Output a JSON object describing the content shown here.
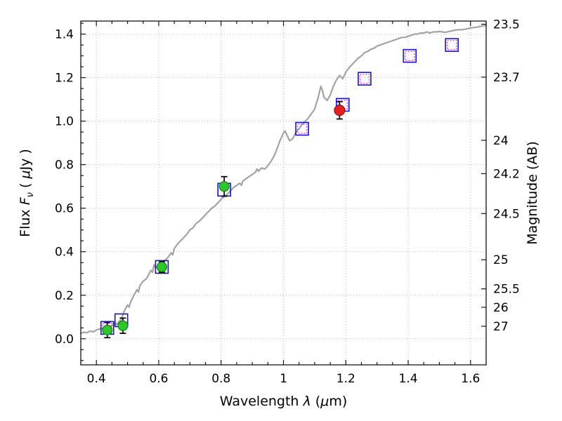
{
  "chart_data": {
    "type": "line+scatter",
    "title": "",
    "xlabel_parts": [
      {
        "t": "Wavelength  "
      },
      {
        "t": "λ",
        "i": true
      },
      {
        "t": " ("
      },
      {
        "t": "μ",
        "i": true
      },
      {
        "t": "m)"
      }
    ],
    "ylabel_left_parts": [
      {
        "t": "Flux  "
      },
      {
        "t": "F",
        "i": true
      },
      {
        "t": "ν",
        "i": true,
        "sub": true
      },
      {
        "t": "  ( "
      },
      {
        "t": "μ",
        "i": true
      },
      {
        "t": "Jy )"
      }
    ],
    "ylabel_right": "Magnitude (AB)",
    "xlim": [
      0.35,
      1.65
    ],
    "ylim": [
      -0.12,
      1.46
    ],
    "x_ticks": [
      0.4,
      0.6,
      0.8,
      1.0,
      1.2,
      1.4,
      1.6
    ],
    "x_tick_labels": [
      "0.4",
      "0.6",
      "0.8",
      "1",
      "1.2",
      "1.4",
      "1.6"
    ],
    "x_minor_step": 0.05,
    "y_ticks": [
      0.0,
      0.2,
      0.4,
      0.6,
      0.8,
      1.0,
      1.2,
      1.4
    ],
    "y_tick_labels": [
      "0.0",
      "0.2",
      "0.4",
      "0.6",
      "0.8",
      "1.0",
      "1.2",
      "1.4"
    ],
    "y_minor_step": 0.05,
    "right_axis": {
      "ticks": [
        23.5,
        23.7,
        24,
        24.2,
        24.5,
        25,
        25.5,
        26,
        27
      ],
      "tick_labels": [
        "23.5",
        "23.7",
        "24",
        "24.2",
        "24.5",
        "25",
        "25.5",
        "26",
        "27"
      ],
      "ab_zero_point": 23.9
    },
    "grid": {
      "on": true,
      "style": "dotted",
      "color": "#b5b5b5"
    },
    "colors": {
      "spectrum": "#a3a3a3",
      "blue_square": "#1414cc",
      "magenta_square": "#ee44cc",
      "green_point": "#2dc72d",
      "green_edge": "#0c720c",
      "red_point": "#e62020",
      "red_edge": "#7a0000",
      "errorbar": "#000000",
      "axes": "#000000"
    },
    "series": [
      {
        "name": "model-spectrum",
        "type": "line",
        "color": "#a3a3a3",
        "width": 2.2,
        "points": [
          [
            0.35,
            0.025
          ],
          [
            0.36,
            0.03
          ],
          [
            0.37,
            0.028
          ],
          [
            0.38,
            0.035
          ],
          [
            0.39,
            0.032
          ],
          [
            0.4,
            0.04
          ],
          [
            0.41,
            0.045
          ],
          [
            0.42,
            0.048
          ],
          [
            0.43,
            0.05
          ],
          [
            0.44,
            0.055
          ],
          [
            0.45,
            0.062
          ],
          [
            0.46,
            0.072
          ],
          [
            0.465,
            0.065
          ],
          [
            0.47,
            0.075
          ],
          [
            0.48,
            0.09
          ],
          [
            0.485,
            0.11
          ],
          [
            0.49,
            0.13
          ],
          [
            0.5,
            0.155
          ],
          [
            0.505,
            0.145
          ],
          [
            0.51,
            0.17
          ],
          [
            0.52,
            0.2
          ],
          [
            0.53,
            0.225
          ],
          [
            0.535,
            0.215
          ],
          [
            0.54,
            0.245
          ],
          [
            0.55,
            0.265
          ],
          [
            0.56,
            0.275
          ],
          [
            0.57,
            0.3
          ],
          [
            0.575,
            0.315
          ],
          [
            0.58,
            0.305
          ],
          [
            0.585,
            0.34
          ],
          [
            0.59,
            0.325
          ],
          [
            0.6,
            0.34
          ],
          [
            0.605,
            0.35
          ],
          [
            0.61,
            0.345
          ],
          [
            0.62,
            0.36
          ],
          [
            0.63,
            0.375
          ],
          [
            0.64,
            0.395
          ],
          [
            0.645,
            0.385
          ],
          [
            0.65,
            0.415
          ],
          [
            0.66,
            0.435
          ],
          [
            0.67,
            0.45
          ],
          [
            0.68,
            0.465
          ],
          [
            0.69,
            0.48
          ],
          [
            0.7,
            0.5
          ],
          [
            0.71,
            0.51
          ],
          [
            0.72,
            0.53
          ],
          [
            0.73,
            0.54
          ],
          [
            0.74,
            0.555
          ],
          [
            0.75,
            0.57
          ],
          [
            0.76,
            0.585
          ],
          [
            0.77,
            0.6
          ],
          [
            0.78,
            0.61
          ],
          [
            0.79,
            0.625
          ],
          [
            0.8,
            0.64
          ],
          [
            0.81,
            0.655
          ],
          [
            0.82,
            0.665
          ],
          [
            0.83,
            0.68
          ],
          [
            0.84,
            0.695
          ],
          [
            0.85,
            0.705
          ],
          [
            0.86,
            0.715
          ],
          [
            0.865,
            0.705
          ],
          [
            0.87,
            0.725
          ],
          [
            0.88,
            0.735
          ],
          [
            0.89,
            0.745
          ],
          [
            0.9,
            0.755
          ],
          [
            0.91,
            0.765
          ],
          [
            0.915,
            0.78
          ],
          [
            0.92,
            0.77
          ],
          [
            0.93,
            0.785
          ],
          [
            0.94,
            0.78
          ],
          [
            0.95,
            0.795
          ],
          [
            0.96,
            0.815
          ],
          [
            0.97,
            0.84
          ],
          [
            0.98,
            0.875
          ],
          [
            0.99,
            0.915
          ],
          [
            1.0,
            0.945
          ],
          [
            1.005,
            0.955
          ],
          [
            1.01,
            0.94
          ],
          [
            1.02,
            0.91
          ],
          [
            1.03,
            0.92
          ],
          [
            1.04,
            0.95
          ],
          [
            1.05,
            0.965
          ],
          [
            1.06,
            0.985
          ],
          [
            1.07,
            1.0
          ],
          [
            1.08,
            1.015
          ],
          [
            1.09,
            1.035
          ],
          [
            1.1,
            1.055
          ],
          [
            1.105,
            1.08
          ],
          [
            1.11,
            1.1
          ],
          [
            1.115,
            1.13
          ],
          [
            1.12,
            1.16
          ],
          [
            1.125,
            1.14
          ],
          [
            1.13,
            1.11
          ],
          [
            1.14,
            1.095
          ],
          [
            1.15,
            1.12
          ],
          [
            1.16,
            1.16
          ],
          [
            1.17,
            1.19
          ],
          [
            1.18,
            1.21
          ],
          [
            1.19,
            1.195
          ],
          [
            1.2,
            1.225
          ],
          [
            1.21,
            1.245
          ],
          [
            1.22,
            1.26
          ],
          [
            1.23,
            1.275
          ],
          [
            1.24,
            1.29
          ],
          [
            1.25,
            1.3
          ],
          [
            1.26,
            1.315
          ],
          [
            1.27,
            1.32
          ],
          [
            1.28,
            1.33
          ],
          [
            1.29,
            1.335
          ],
          [
            1.3,
            1.345
          ],
          [
            1.31,
            1.35
          ],
          [
            1.32,
            1.355
          ],
          [
            1.33,
            1.36
          ],
          [
            1.34,
            1.365
          ],
          [
            1.35,
            1.37
          ],
          [
            1.36,
            1.375
          ],
          [
            1.37,
            1.38
          ],
          [
            1.38,
            1.385
          ],
          [
            1.39,
            1.385
          ],
          [
            1.4,
            1.39
          ],
          [
            1.41,
            1.395
          ],
          [
            1.42,
            1.4
          ],
          [
            1.43,
            1.4
          ],
          [
            1.44,
            1.405
          ],
          [
            1.45,
            1.405
          ],
          [
            1.46,
            1.41
          ],
          [
            1.47,
            1.405
          ],
          [
            1.48,
            1.41
          ],
          [
            1.49,
            1.41
          ],
          [
            1.5,
            1.412
          ],
          [
            1.51,
            1.41
          ],
          [
            1.52,
            1.408
          ],
          [
            1.53,
            1.412
          ],
          [
            1.54,
            1.415
          ],
          [
            1.55,
            1.418
          ],
          [
            1.56,
            1.42
          ],
          [
            1.57,
            1.42
          ],
          [
            1.58,
            1.422
          ],
          [
            1.59,
            1.425
          ],
          [
            1.6,
            1.428
          ],
          [
            1.61,
            1.43
          ],
          [
            1.62,
            1.432
          ],
          [
            1.63,
            1.435
          ],
          [
            1.64,
            1.438
          ],
          [
            1.65,
            1.44
          ]
        ]
      },
      {
        "name": "model-photometry-squares",
        "type": "scatter",
        "marker": "open-square",
        "color": "#1414cc",
        "size": 18,
        "stroke_width": 1.6,
        "points": [
          [
            0.435,
            0.05
          ],
          [
            0.48,
            0.085
          ],
          [
            0.61,
            0.33
          ],
          [
            0.81,
            0.685
          ],
          [
            1.06,
            0.965
          ],
          [
            1.19,
            1.075
          ],
          [
            1.26,
            1.195
          ],
          [
            1.405,
            1.3
          ],
          [
            1.54,
            1.35
          ]
        ]
      },
      {
        "name": "predicted-photometry-squares",
        "type": "scatter",
        "marker": "open-square",
        "color": "#ee44cc",
        "size": 13,
        "stroke_width": 1.4,
        "dash": "2 2",
        "points": [
          [
            0.435,
            0.05
          ],
          [
            1.06,
            0.965
          ],
          [
            1.19,
            1.075
          ],
          [
            1.26,
            1.195
          ],
          [
            1.405,
            1.3
          ],
          [
            1.54,
            1.35
          ]
        ]
      },
      {
        "name": "observed-optical-points",
        "type": "scatter",
        "marker": "filled-circle",
        "color": "#2dc72d",
        "edge": "#0c720c",
        "size": 14,
        "error_color": "#000000",
        "points": [
          [
            0.435,
            0.04,
            0.035
          ],
          [
            0.485,
            0.06,
            0.035
          ],
          [
            0.61,
            0.33,
            0.025
          ],
          [
            0.81,
            0.7,
            0.045
          ]
        ]
      },
      {
        "name": "observed-nir-point",
        "type": "scatter",
        "marker": "filled-circle",
        "color": "#e62020",
        "edge": "#7a0000",
        "size": 15,
        "error_color": "#000000",
        "points": [
          [
            1.18,
            1.05,
            0.04
          ]
        ]
      }
    ]
  }
}
